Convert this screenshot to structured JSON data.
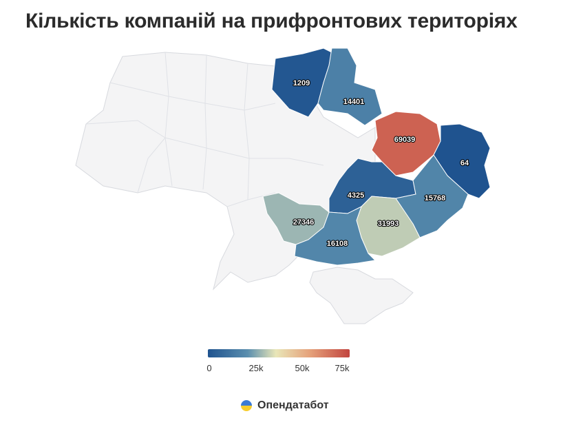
{
  "title": "Кількість компаній на прифронтових територіях",
  "chart_data": {
    "type": "choropleth",
    "regions": [
      {
        "label": "1209"
      },
      {
        "label": "14401"
      },
      {
        "label": "69039"
      },
      {
        "label": "64"
      },
      {
        "label": "4325"
      },
      {
        "label": "15768"
      },
      {
        "label": "27346"
      },
      {
        "label": "31993"
      },
      {
        "label": "16108"
      }
    ],
    "color_scale": {
      "min": 0,
      "max": 75000,
      "colors": [
        "#1f538f",
        "#5a8eae",
        "#e9e6b8",
        "#e5a17a",
        "#c2453f"
      ],
      "ticks": [
        "0",
        "25k",
        "50k",
        "75k"
      ]
    }
  },
  "brand": {
    "name": "Опендатабот"
  }
}
